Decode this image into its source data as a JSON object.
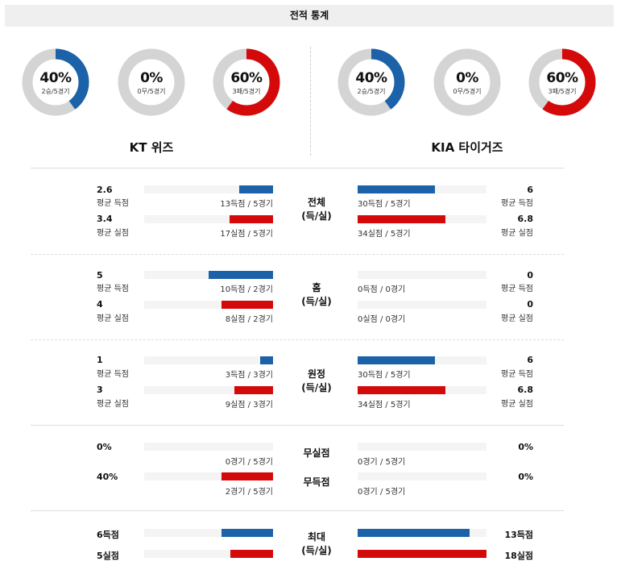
{
  "header": {
    "title": "전적 통계"
  },
  "colors": {
    "blue": "#1c62a8",
    "red": "#d40a0a",
    "gray": "#d4d4d4"
  },
  "teams": {
    "left": {
      "name": "KT 위즈",
      "donuts": [
        {
          "pct": "40%",
          "sub": "2승/5경기",
          "value": 0.4,
          "color": "#1c62a8"
        },
        {
          "pct": "0%",
          "sub": "0무/5경기",
          "value": 0,
          "color": "#1c62a8"
        },
        {
          "pct": "60%",
          "sub": "3패/5경기",
          "value": 0.6,
          "color": "#d40a0a"
        }
      ]
    },
    "right": {
      "name": "KIA 타이거즈",
      "donuts": [
        {
          "pct": "40%",
          "sub": "2승/5경기",
          "value": 0.4,
          "color": "#1c62a8"
        },
        {
          "pct": "0%",
          "sub": "0무/5경기",
          "value": 0,
          "color": "#1c62a8"
        },
        {
          "pct": "60%",
          "sub": "3패/5경기",
          "value": 0.6,
          "color": "#d40a0a"
        }
      ]
    }
  },
  "sections": {
    "total": {
      "category": [
        "전체",
        "(득/실)"
      ],
      "left": [
        {
          "value": "2.6",
          "label": "평균 득점",
          "count": "13득점 / 5경기",
          "fill": 0.26
        },
        {
          "value": "3.4",
          "label": "평균 실점",
          "count": "17실점 / 5경기",
          "fill": 0.34
        }
      ],
      "right": [
        {
          "value": "6",
          "label": "평균 득점",
          "count": "30득점 / 5경기",
          "fill": 0.6
        },
        {
          "value": "6.8",
          "label": "평균 실점",
          "count": "34실점 / 5경기",
          "fill": 0.68
        }
      ]
    },
    "home": {
      "category": [
        "홈",
        "(득/실)"
      ],
      "left": [
        {
          "value": "5",
          "label": "평균 득점",
          "count": "10득점 / 2경기",
          "fill": 0.5
        },
        {
          "value": "4",
          "label": "평균 실점",
          "count": "8실점 / 2경기",
          "fill": 0.4
        }
      ],
      "right": [
        {
          "value": "0",
          "label": "평균 득점",
          "count": "0득점 / 0경기",
          "fill": 0
        },
        {
          "value": "0",
          "label": "평균 실점",
          "count": "0실점 / 0경기",
          "fill": 0
        }
      ]
    },
    "away": {
      "category": [
        "원정",
        "(득/실)"
      ],
      "left": [
        {
          "value": "1",
          "label": "평균 득점",
          "count": "3득점 / 3경기",
          "fill": 0.1
        },
        {
          "value": "3",
          "label": "평균 실점",
          "count": "9실점 / 3경기",
          "fill": 0.3
        }
      ],
      "right": [
        {
          "value": "6",
          "label": "평균 득점",
          "count": "30득점 / 5경기",
          "fill": 0.6
        },
        {
          "value": "6.8",
          "label": "평균 실점",
          "count": "34실점 / 5경기",
          "fill": 0.68
        }
      ]
    },
    "shutout": {
      "category_a": "무실점",
      "category_b": "무득점",
      "left": [
        {
          "value": "0%",
          "count": "0경기 / 5경기",
          "fill": 0
        },
        {
          "value": "40%",
          "count": "2경기 / 5경기",
          "fill": 0.4
        }
      ],
      "right": [
        {
          "value": "0%",
          "count": "0경기 / 5경기",
          "fill": 0
        },
        {
          "value": "0%",
          "count": "0경기 / 5경기",
          "fill": 0
        }
      ]
    },
    "max": {
      "category": [
        "최대",
        "(득/실)"
      ],
      "left": [
        {
          "value": "6득점",
          "fill": 0.4
        },
        {
          "value": "5실점",
          "fill": 0.33
        }
      ],
      "right": [
        {
          "value": "13득점",
          "fill": 0.87
        },
        {
          "value": "18실점",
          "fill": 1.0
        }
      ]
    }
  }
}
